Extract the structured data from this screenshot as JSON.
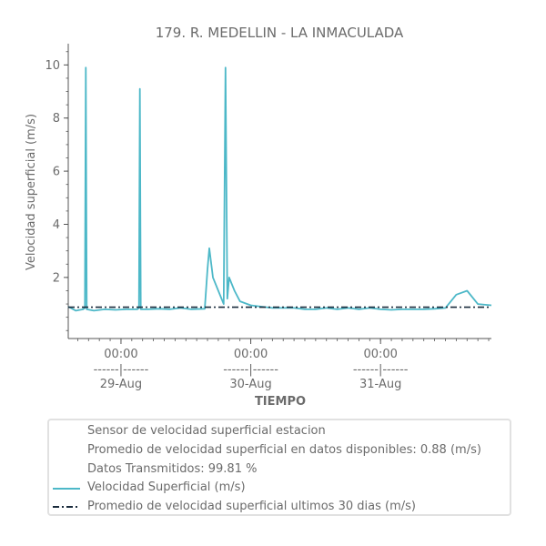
{
  "chart_data": {
    "type": "line",
    "title": "179. R. MEDELLIN - LA INMACULADA",
    "xlabel": "TIEMPO",
    "ylabel": "Velocidad superficial (m/s)",
    "ylim": [
      -0.3,
      10.8
    ],
    "yticks": [
      2,
      4,
      6,
      8,
      10
    ],
    "xlim": [
      "2023-08-28T14:15",
      "2023-08-31T20:30"
    ],
    "xticks": [
      {
        "at": "2023-08-29T00:00",
        "label_time": "00:00",
        "label_sep": "------|------",
        "label_date": "29-Aug"
      },
      {
        "at": "2023-08-30T00:00",
        "label_time": "00:00",
        "label_sep": "------|------",
        "label_date": "30-Aug"
      },
      {
        "at": "2023-08-31T00:00",
        "label_time": "00:00",
        "label_sep": "------|------",
        "label_date": "31-Aug"
      }
    ],
    "grid": false,
    "series": [
      {
        "name": "Velocidad Superficial (m/s)",
        "color": "#4db8c8",
        "style": "solid",
        "x": [
          "2023-08-28T14:15",
          "2023-08-28T15:40",
          "2023-08-28T17:00",
          "2023-08-28T17:20",
          "2023-08-28T17:30",
          "2023-08-28T17:40",
          "2023-08-28T19:00",
          "2023-08-28T21:00",
          "2023-08-28T23:00",
          "2023-08-29T01:00",
          "2023-08-29T03:00",
          "2023-08-29T03:20",
          "2023-08-29T03:30",
          "2023-08-29T03:40",
          "2023-08-29T05:00",
          "2023-08-29T07:00",
          "2023-08-29T09:00",
          "2023-08-29T11:00",
          "2023-08-29T13:00",
          "2023-08-29T15:30",
          "2023-08-29T16:00",
          "2023-08-29T16:20",
          "2023-08-29T17:00",
          "2023-08-29T18:00",
          "2023-08-29T19:00",
          "2023-08-29T19:20",
          "2023-08-29T19:40",
          "2023-08-29T20:00",
          "2023-08-29T21:00",
          "2023-08-29T22:00",
          "2023-08-30T00:00",
          "2023-08-30T02:00",
          "2023-08-30T04:00",
          "2023-08-30T06:00",
          "2023-08-30T08:00",
          "2023-08-30T10:00",
          "2023-08-30T12:00",
          "2023-08-30T14:00",
          "2023-08-30T16:00",
          "2023-08-30T18:00",
          "2023-08-30T20:00",
          "2023-08-30T22:00",
          "2023-08-31T00:00",
          "2023-08-31T02:00",
          "2023-08-31T04:00",
          "2023-08-31T06:00",
          "2023-08-31T08:00",
          "2023-08-31T10:00",
          "2023-08-31T12:00",
          "2023-08-31T14:00",
          "2023-08-31T16:00",
          "2023-08-31T18:00",
          "2023-08-31T20:30"
        ],
        "values": [
          0.9,
          0.75,
          0.8,
          0.85,
          9.9,
          0.8,
          0.75,
          0.8,
          0.78,
          0.8,
          0.8,
          0.85,
          9.1,
          0.8,
          0.8,
          0.82,
          0.8,
          0.85,
          0.8,
          0.82,
          2.3,
          3.1,
          2.0,
          1.5,
          1.0,
          9.9,
          1.2,
          2.0,
          1.5,
          1.1,
          0.95,
          0.9,
          0.85,
          0.85,
          0.85,
          0.8,
          0.8,
          0.85,
          0.8,
          0.85,
          0.8,
          0.85,
          0.8,
          0.78,
          0.8,
          0.8,
          0.8,
          0.82,
          0.85,
          1.35,
          1.5,
          1.0,
          0.95
        ]
      },
      {
        "name": "Promedio de velocidad superficial ultimos 30 dias (m/s)",
        "color": "#1a2b3c",
        "style": "dashdot",
        "x": [
          "2023-08-28T14:15",
          "2023-08-31T20:30"
        ],
        "values": [
          0.88,
          0.88
        ]
      }
    ],
    "legend": {
      "placement": "bottom",
      "entries": [
        "Sensor de velocidad superficial estacion",
        "Promedio de velocidad superficial en datos disponibles: 0.88 (m/s)",
        "Datos Transmitidos: 99.81 %",
        "Velocidad Superficial (m/s)",
        "Promedio de velocidad superficial ultimos 30 dias (m/s)"
      ]
    }
  }
}
